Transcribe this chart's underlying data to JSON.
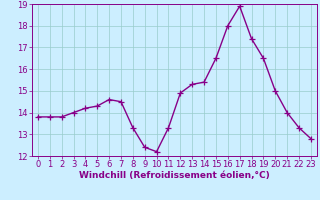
{
  "x": [
    0,
    1,
    2,
    3,
    4,
    5,
    6,
    7,
    8,
    9,
    10,
    11,
    12,
    13,
    14,
    15,
    16,
    17,
    18,
    19,
    20,
    21,
    22,
    23
  ],
  "y": [
    13.8,
    13.8,
    13.8,
    14.0,
    14.2,
    14.3,
    14.6,
    14.5,
    13.3,
    12.4,
    12.2,
    13.3,
    14.9,
    15.3,
    15.4,
    16.5,
    18.0,
    18.9,
    17.4,
    16.5,
    15.0,
    14.0,
    13.3,
    12.8
  ],
  "line_color": "#880088",
  "marker": "+",
  "bg_color": "#cceeff",
  "grid_color": "#99cccc",
  "xlabel": "Windchill (Refroidissement éolien,°C)",
  "ylabel": "",
  "ylim": [
    12,
    19
  ],
  "xlim": [
    -0.5,
    23.5
  ],
  "yticks": [
    12,
    13,
    14,
    15,
    16,
    17,
    18,
    19
  ],
  "xticks": [
    0,
    1,
    2,
    3,
    4,
    5,
    6,
    7,
    8,
    9,
    10,
    11,
    12,
    13,
    14,
    15,
    16,
    17,
    18,
    19,
    20,
    21,
    22,
    23
  ],
  "tick_label_color": "#880088",
  "xlabel_color": "#880088",
  "xlabel_fontsize": 6.5,
  "tick_fontsize": 6.0,
  "linewidth": 1.0,
  "markersize": 4,
  "spine_color": "#880088"
}
